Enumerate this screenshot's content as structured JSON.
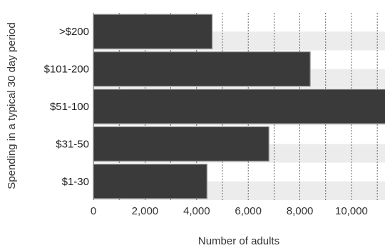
{
  "chart_data": {
    "type": "bar",
    "orientation": "horizontal",
    "categories": [
      ">$200",
      "$101-200",
      "$51-100",
      "$31-50",
      "$1-30"
    ],
    "values": [
      4600,
      8400,
      11500,
      6800,
      4400
    ],
    "xlabel": "Number of adults",
    "ylabel": "Spending in a typical 30 day period",
    "xlim": [
      0,
      11300
    ],
    "xticks": [
      0,
      2000,
      4000,
      6000,
      8000,
      10000
    ],
    "xtick_labels": [
      "0",
      "2,000",
      "4,000",
      "6,000",
      "8,000",
      "10,000"
    ],
    "grid": true,
    "legend": "none",
    "colors": {
      "bar_fill": "#3a3a3a",
      "bar_stroke": "#8a8a8a",
      "band": "#ececec",
      "grid": "#444444"
    }
  }
}
